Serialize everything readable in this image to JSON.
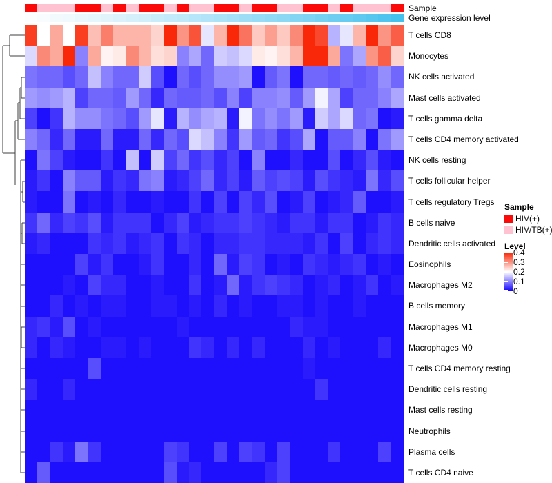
{
  "annotations": {
    "sample_label": "Sample",
    "expression_label": "Gene expression level",
    "sample_values": [
      "HIV(+)",
      "HIV/TB(+)",
      "HIV/TB(+)",
      "HIV/TB(+)",
      "HIV(+)",
      "HIV(+)",
      "HIV/TB(+)",
      "HIV(+)",
      "HIV/TB(+)",
      "HIV(+)",
      "HIV(+)",
      "HIV/TB(+)",
      "HIV(+)",
      "HIV/TB(+)",
      "HIV/TB(+)",
      "HIV(+)",
      "HIV(+)",
      "HIV/TB(+)",
      "HIV(+)",
      "HIV(+)",
      "HIV/TB(+)",
      "HIV/TB(+)",
      "HIV(+)",
      "HIV(+)",
      "HIV/TB(+)",
      "HIV(+)",
      "HIV/TB(+)",
      "HIV/TB(+)",
      "HIV/TB(+)",
      "HIV(+)"
    ],
    "expression_values": [
      0.0,
      0.02,
      0.05,
      0.07,
      0.1,
      0.12,
      0.15,
      0.18,
      0.21,
      0.24,
      0.28,
      0.31,
      0.34,
      0.38,
      0.41,
      0.45,
      0.48,
      0.52,
      0.55,
      0.59,
      0.62,
      0.66,
      0.7,
      0.74,
      0.78,
      0.82,
      0.86,
      0.9,
      0.95,
      1.0
    ]
  },
  "legend": {
    "sample_title": "Sample",
    "sample_items": [
      {
        "label": "HIV(+)",
        "color": "#fb0a0a"
      },
      {
        "label": "HIV/TB(+)",
        "color": "#ffc2d1"
      }
    ],
    "level_title": "Level",
    "level_ticks": [
      "0.4",
      "0.3",
      "0.2",
      "0.1",
      "0"
    ]
  },
  "colors": {
    "hiv_positive": "#fb0a0a",
    "hiv_tb_positive": "#ffc2d1",
    "expression_low": "#fcfdff",
    "expression_high": "#45c1ee",
    "heat_low": "#1202fc",
    "heat_mid": "#ffffff",
    "heat_high": "#f82808",
    "dendrogram_line": "#3f3f3f"
  },
  "chart_data": {
    "type": "heatmap",
    "title": "",
    "rows": [
      "T cells CD8",
      "Monocytes",
      "NK cells activated",
      "Mast cells activated",
      "T cells gamma delta",
      "T cells CD4 memory activated",
      "NK cells resting",
      "T cells follicular helper",
      "T cells regulatory Tregs",
      "B cells naive",
      "Dendritic cells activated",
      "Eosinophils",
      "Macrophages M2",
      "B cells memory",
      "Macrophages M1",
      "Macrophages M0",
      "T cells CD4 memory resting",
      "Dendritic cells resting",
      "Mast cells resting",
      "Neutrophils",
      "Plasma cells",
      "T cells CD4 naive"
    ],
    "n_columns": 30,
    "column_labels_shown": false,
    "value_range": [
      0,
      0.4
    ],
    "colormap": {
      "low": "#1202fc",
      "mid": "#ffffff",
      "high": "#f82808",
      "midpoint": 0.2
    },
    "row_dendrogram": true,
    "values": [
      [
        0.38,
        0.2,
        0.28,
        0.2,
        0.38,
        0.26,
        0.32,
        0.27,
        0.27,
        0.27,
        0.24,
        0.4,
        0.3,
        0.36,
        0.18,
        0.27,
        0.4,
        0.33,
        0.25,
        0.29,
        0.25,
        0.31,
        0.4,
        0.37,
        0.14,
        0.18,
        0.27,
        0.4,
        0.3,
        0.35
      ],
      [
        0.17,
        0.31,
        0.28,
        0.4,
        0.1,
        0.28,
        0.21,
        0.22,
        0.31,
        0.27,
        0.23,
        0.24,
        0.1,
        0.13,
        0.08,
        0.16,
        0.15,
        0.17,
        0.22,
        0.21,
        0.23,
        0.27,
        0.4,
        0.4,
        0.28,
        0.09,
        0.13,
        0.3,
        0.35,
        0.24
      ],
      [
        0.09,
        0.08,
        0.08,
        0.06,
        0.08,
        0.15,
        0.1,
        0.08,
        0.08,
        0.16,
        0.06,
        0.01,
        0.08,
        0.06,
        0.08,
        0.11,
        0.11,
        0.12,
        0.01,
        0.07,
        0.09,
        0.01,
        0.08,
        0.08,
        0.07,
        0.08,
        0.07,
        0.08,
        0.11,
        0.08
      ],
      [
        0.12,
        0.11,
        0.12,
        0.14,
        0.05,
        0.08,
        0.08,
        0.07,
        0.12,
        0.08,
        0.03,
        0.08,
        0.07,
        0.07,
        0.08,
        0.06,
        0.1,
        0.05,
        0.1,
        0.1,
        0.11,
        0.07,
        0.12,
        0.19,
        0.13,
        0.05,
        0.08,
        0.08,
        0.1,
        0.13
      ],
      [
        0.05,
        0.01,
        0.04,
        0.14,
        0.11,
        0.11,
        0.09,
        0.08,
        0.06,
        0.12,
        0.18,
        0.02,
        0.14,
        0.11,
        0.13,
        0.14,
        0.02,
        0.19,
        0.09,
        0.11,
        0.09,
        0.12,
        0.02,
        0.16,
        0.13,
        0.17,
        0.08,
        0.09,
        0.01,
        0.02
      ],
      [
        0.1,
        0.08,
        0.03,
        0.08,
        0.02,
        0.02,
        0.08,
        0.02,
        0.02,
        0.08,
        0.03,
        0.08,
        0.06,
        0.17,
        0.15,
        0.1,
        0.04,
        0.12,
        0.07,
        0.08,
        0.04,
        0.06,
        0.13,
        0.01,
        0.07,
        0.07,
        0.1,
        0.01,
        0.09,
        0.12
      ],
      [
        0.01,
        0.09,
        0.05,
        0.02,
        0.01,
        0.01,
        0.04,
        0.01,
        0.15,
        0.01,
        0.16,
        0.05,
        0.08,
        0.04,
        0.06,
        0.03,
        0.05,
        0.01,
        0.1,
        0.01,
        0.01,
        0.03,
        0.01,
        0.01,
        0.06,
        0.01,
        0.03,
        0.06,
        0.02,
        0.01
      ],
      [
        0.02,
        0.04,
        0.01,
        0.1,
        0.07,
        0.07,
        0.02,
        0.04,
        0.03,
        0.09,
        0.1,
        0.02,
        0.03,
        0.05,
        0.08,
        0.03,
        0.05,
        0.02,
        0.07,
        0.05,
        0.06,
        0.05,
        0.02,
        0.06,
        0.04,
        0.03,
        0.02,
        0.09,
        0.03,
        0.06
      ],
      [
        0.02,
        0.01,
        0.01,
        0.09,
        0.01,
        0.02,
        0.01,
        0.03,
        0.01,
        0.01,
        0.02,
        0.01,
        0.01,
        0.04,
        0.01,
        0.05,
        0.01,
        0.05,
        0.03,
        0.06,
        0.01,
        0.02,
        0.05,
        0.01,
        0.02,
        0.03,
        0.07,
        0.01,
        0.01,
        0.02
      ],
      [
        0.04,
        0.08,
        0.03,
        0.05,
        0.04,
        0.06,
        0.02,
        0.04,
        0.04,
        0.04,
        0.01,
        0.03,
        0.05,
        0.02,
        0.03,
        0.04,
        0.04,
        0.05,
        0.04,
        0.03,
        0.02,
        0.04,
        0.04,
        0.02,
        0.04,
        0.04,
        0.01,
        0.02,
        0.04,
        0.03
      ],
      [
        0.02,
        0.03,
        0.01,
        0.01,
        0.01,
        0.04,
        0.03,
        0.04,
        0.02,
        0.03,
        0.04,
        0.01,
        0.04,
        0.03,
        0.01,
        0.03,
        0.03,
        0.04,
        0.04,
        0.03,
        0.03,
        0.03,
        0.02,
        0.04,
        0.01,
        0.05,
        0.01,
        0.03,
        0.04,
        0.03
      ],
      [
        0.01,
        0.01,
        0.01,
        0.01,
        0.05,
        0.02,
        0.04,
        0.01,
        0.01,
        0.02,
        0.04,
        0.01,
        0.01,
        0.03,
        0.01,
        0.08,
        0.02,
        0.05,
        0.04,
        0.01,
        0.02,
        0.01,
        0.04,
        0.03,
        0.02,
        0.03,
        0.04,
        0.01,
        0.02,
        0.01
      ],
      [
        0.01,
        0.01,
        0.01,
        0.02,
        0.01,
        0.05,
        0.03,
        0.03,
        0.01,
        0.01,
        0.02,
        0.01,
        0.01,
        0.04,
        0.01,
        0.02,
        0.08,
        0.02,
        0.04,
        0.05,
        0.04,
        0.03,
        0.01,
        0.02,
        0.03,
        0.01,
        0.02,
        0.04,
        0.01,
        0.02
      ],
      [
        0.01,
        0.01,
        0.03,
        0.01,
        0.02,
        0.01,
        0.02,
        0.02,
        0.01,
        0.01,
        0.02,
        0.02,
        0.01,
        0.02,
        0.01,
        0.03,
        0.01,
        0.02,
        0.01,
        0.01,
        0.02,
        0.02,
        0.01,
        0.02,
        0.01,
        0.01,
        0.02,
        0.01,
        0.01,
        0.01
      ],
      [
        0.03,
        0.04,
        0.02,
        0.06,
        0.01,
        0.02,
        0.01,
        0.01,
        0.01,
        0.01,
        0.01,
        0.01,
        0.02,
        0.01,
        0.01,
        0.01,
        0.01,
        0.01,
        0.01,
        0.01,
        0.01,
        0.03,
        0.02,
        0.02,
        0.01,
        0.01,
        0.01,
        0.01,
        0.01,
        0.01
      ],
      [
        0.03,
        0.01,
        0.03,
        0.02,
        0.01,
        0.01,
        0.02,
        0.02,
        0.01,
        0.02,
        0.01,
        0.01,
        0.01,
        0.04,
        0.03,
        0.01,
        0.03,
        0.01,
        0.03,
        0.01,
        0.01,
        0.01,
        0.03,
        0.01,
        0.02,
        0.01,
        0.01,
        0.01,
        0.03,
        0.01
      ],
      [
        0.01,
        0.01,
        0.01,
        0.01,
        0.01,
        0.06,
        0.01,
        0.01,
        0.01,
        0.01,
        0.01,
        0.01,
        0.01,
        0.01,
        0.01,
        0.01,
        0.01,
        0.01,
        0.01,
        0.01,
        0.01,
        0.01,
        0.02,
        0.01,
        0.01,
        0.01,
        0.01,
        0.01,
        0.01,
        0.01
      ],
      [
        0.03,
        0.01,
        0.01,
        0.03,
        0.01,
        0.01,
        0.01,
        0.01,
        0.01,
        0.01,
        0.01,
        0.01,
        0.01,
        0.01,
        0.01,
        0.01,
        0.01,
        0.01,
        0.01,
        0.01,
        0.01,
        0.01,
        0.01,
        0.04,
        0.01,
        0.01,
        0.01,
        0.01,
        0.01,
        0.01
      ],
      [
        0.01,
        0.01,
        0.01,
        0.01,
        0.01,
        0.01,
        0.01,
        0.01,
        0.01,
        0.01,
        0.01,
        0.01,
        0.01,
        0.01,
        0.01,
        0.01,
        0.01,
        0.01,
        0.01,
        0.01,
        0.01,
        0.01,
        0.01,
        0.01,
        0.01,
        0.01,
        0.01,
        0.01,
        0.01,
        0.01
      ],
      [
        0.01,
        0.01,
        0.01,
        0.01,
        0.01,
        0.01,
        0.01,
        0.01,
        0.01,
        0.01,
        0.01,
        0.01,
        0.01,
        0.01,
        0.01,
        0.01,
        0.01,
        0.01,
        0.01,
        0.01,
        0.01,
        0.01,
        0.01,
        0.01,
        0.01,
        0.01,
        0.01,
        0.01,
        0.01,
        0.01
      ],
      [
        0.01,
        0.01,
        0.04,
        0.02,
        0.09,
        0.04,
        0.01,
        0.01,
        0.01,
        0.01,
        0.01,
        0.05,
        0.04,
        0.01,
        0.01,
        0.05,
        0.01,
        0.05,
        0.04,
        0.01,
        0.05,
        0.01,
        0.01,
        0.01,
        0.04,
        0.01,
        0.01,
        0.01,
        0.05,
        0.01
      ],
      [
        0.01,
        0.07,
        0.01,
        0.01,
        0.01,
        0.01,
        0.01,
        0.01,
        0.01,
        0.01,
        0.01,
        0.06,
        0.02,
        0.03,
        0.01,
        0.01,
        0.01,
        0.01,
        0.01,
        0.03,
        0.05,
        0.01,
        0.01,
        0.01,
        0.01,
        0.01,
        0.01,
        0.01,
        0.01,
        0.01
      ]
    ]
  }
}
